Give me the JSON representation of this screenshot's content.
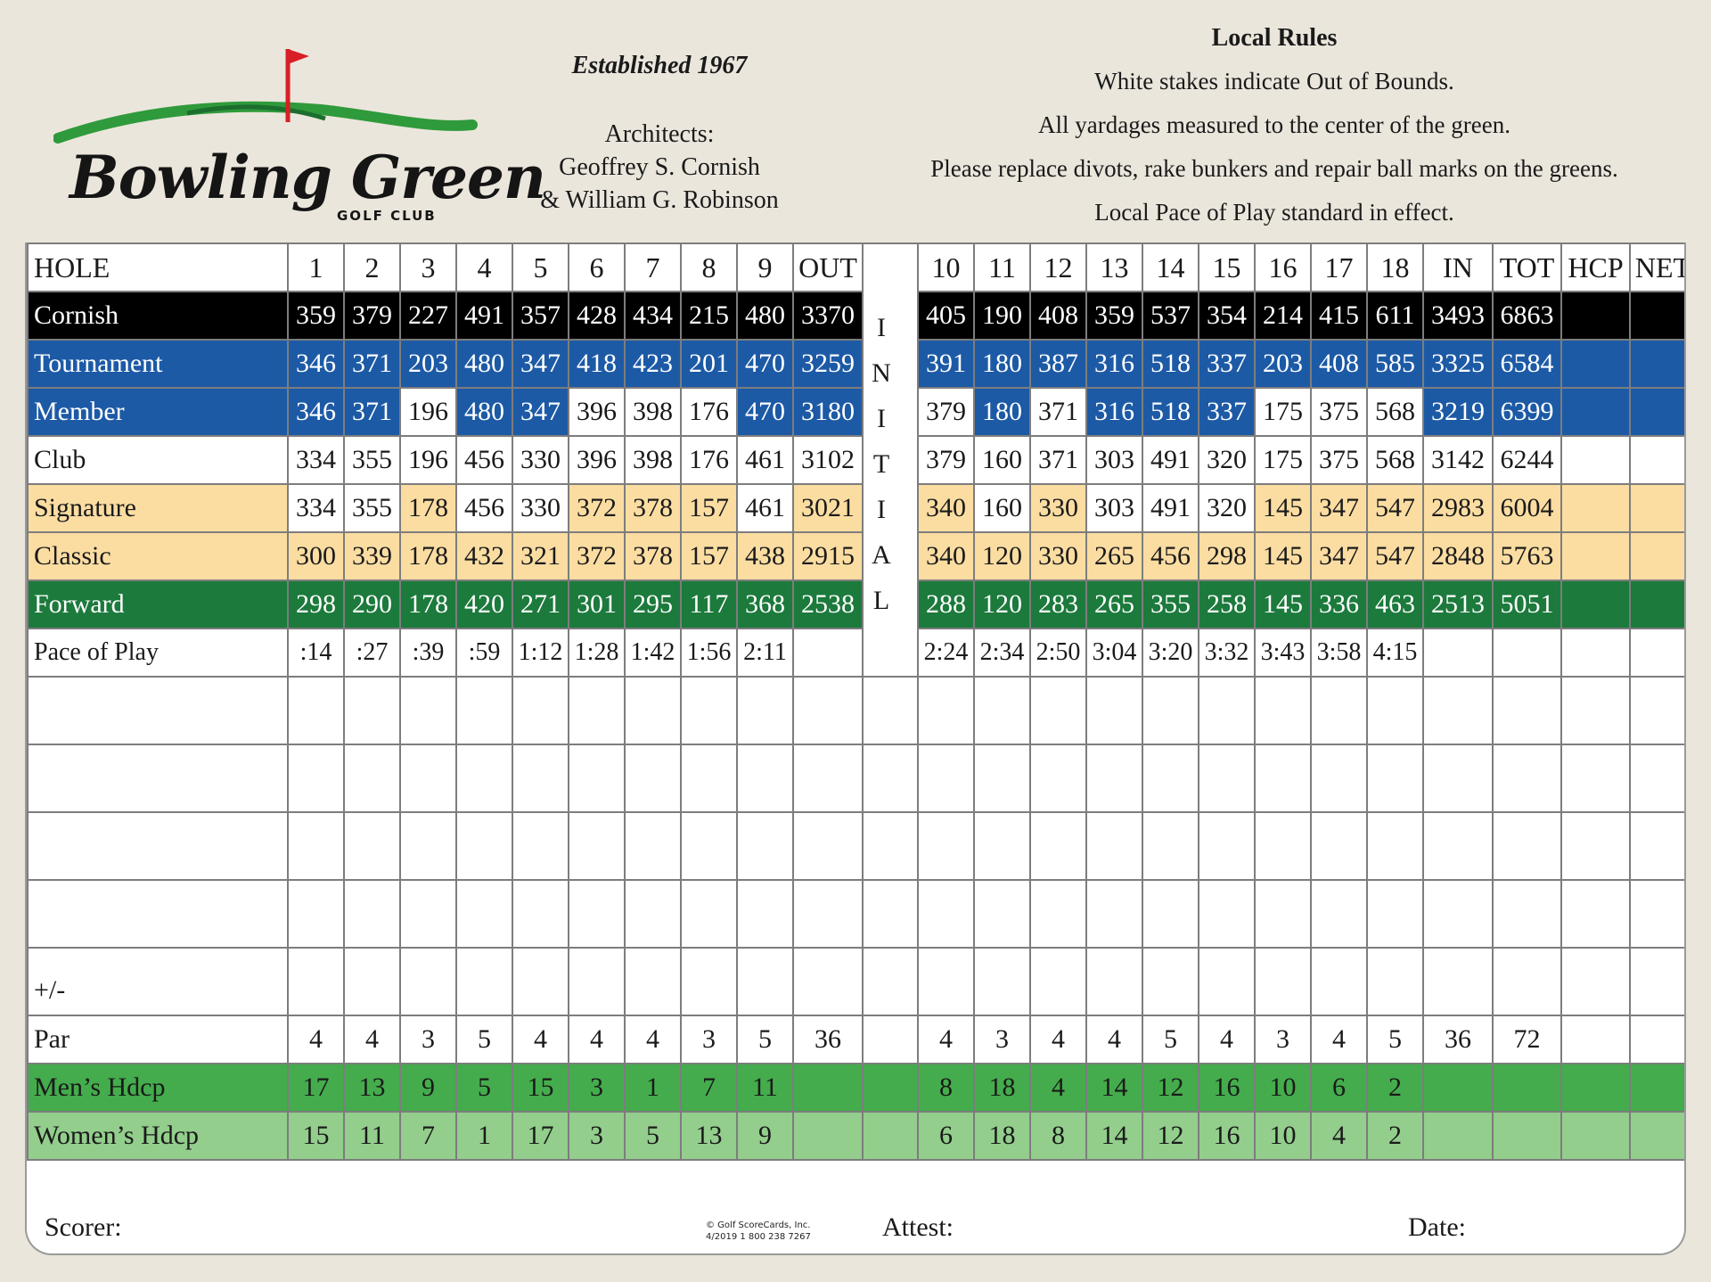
{
  "club": {
    "name": "Bowling Green",
    "subtitle": "GOLF CLUB",
    "established": "Established 1967",
    "architects_label": "Architects:",
    "architect_1": "Geoffrey S. Cornish",
    "architect_2": "& William G. Robinson"
  },
  "local_rules": {
    "title": "Local Rules",
    "lines": [
      "White stakes indicate Out of Bounds.",
      "All yardages measured to the center of the green.",
      "Please replace divots, rake bunkers and repair ball marks on the greens.",
      "Local Pace of Play standard in effect."
    ]
  },
  "colors": {
    "black_tee": "#000000",
    "blue_tee": "#1d5aa6",
    "gold_tee": "#fbdda2",
    "green_tee": "#1c7a3c",
    "mens_hdcp": "#44ac4c",
    "womens_hdcp": "#93ce8c",
    "flag": "#d81f26",
    "swoosh": "#2f9a3b"
  },
  "scorecard": {
    "hole_header": {
      "label": "HOLE",
      "front": [
        "1",
        "2",
        "3",
        "4",
        "5",
        "6",
        "7",
        "8",
        "9"
      ],
      "out": "OUT",
      "back": [
        "10",
        "11",
        "12",
        "13",
        "14",
        "15",
        "16",
        "17",
        "18"
      ],
      "in": "IN",
      "tot": "TOT",
      "hcp": "HCP",
      "net": "NET"
    },
    "initial_letters": [
      "I",
      "N",
      "I",
      "T",
      "I",
      "A",
      "L"
    ],
    "tees": [
      {
        "name": "Cornish",
        "front": [
          "359",
          "379",
          "227",
          "491",
          "357",
          "428",
          "434",
          "215",
          "480"
        ],
        "out": "3370",
        "back": [
          "405",
          "190",
          "408",
          "359",
          "537",
          "354",
          "214",
          "415",
          "611"
        ],
        "in": "3493",
        "tot": "6863"
      },
      {
        "name": "Tournament",
        "front": [
          "346",
          "371",
          "203",
          "480",
          "347",
          "418",
          "423",
          "201",
          "470"
        ],
        "out": "3259",
        "back": [
          "391",
          "180",
          "387",
          "316",
          "518",
          "337",
          "203",
          "408",
          "585"
        ],
        "in": "3325",
        "tot": "6584"
      },
      {
        "name": "Member",
        "front": [
          "346",
          "371",
          "196",
          "480",
          "347",
          "396",
          "398",
          "176",
          "470"
        ],
        "out": "3180",
        "back": [
          "379",
          "180",
          "371",
          "316",
          "518",
          "337",
          "175",
          "375",
          "568"
        ],
        "in": "3219",
        "tot": "6399"
      },
      {
        "name": "Club",
        "front": [
          "334",
          "355",
          "196",
          "456",
          "330",
          "396",
          "398",
          "176",
          "461"
        ],
        "out": "3102",
        "back": [
          "379",
          "160",
          "371",
          "303",
          "491",
          "320",
          "175",
          "375",
          "568"
        ],
        "in": "3142",
        "tot": "6244"
      },
      {
        "name": "Signature",
        "front": [
          "334",
          "355",
          "178",
          "456",
          "330",
          "372",
          "378",
          "157",
          "461"
        ],
        "out": "3021",
        "back": [
          "340",
          "160",
          "330",
          "303",
          "491",
          "320",
          "145",
          "347",
          "547"
        ],
        "in": "2983",
        "tot": "6004"
      },
      {
        "name": "Classic",
        "front": [
          "300",
          "339",
          "178",
          "432",
          "321",
          "372",
          "378",
          "157",
          "438"
        ],
        "out": "2915",
        "back": [
          "340",
          "120",
          "330",
          "265",
          "456",
          "298",
          "145",
          "347",
          "547"
        ],
        "in": "2848",
        "tot": "5763"
      },
      {
        "name": "Forward",
        "front": [
          "298",
          "290",
          "178",
          "420",
          "271",
          "301",
          "295",
          "117",
          "368"
        ],
        "out": "2538",
        "back": [
          "288",
          "120",
          "283",
          "265",
          "355",
          "258",
          "145",
          "336",
          "463"
        ],
        "in": "2513",
        "tot": "5051"
      }
    ],
    "pace": {
      "label": "Pace of Play",
      "front": [
        ":14",
        ":27",
        ":39",
        ":59",
        "1:12",
        "1:28",
        "1:42",
        "1:56",
        "2:11"
      ],
      "back": [
        "2:24",
        "2:34",
        "2:50",
        "3:04",
        "3:20",
        "3:32",
        "3:43",
        "3:58",
        "4:15"
      ]
    },
    "plus_minus_label": "+/-",
    "par": {
      "label": "Par",
      "front": [
        "4",
        "4",
        "3",
        "5",
        "4",
        "4",
        "4",
        "3",
        "5"
      ],
      "out": "36",
      "back": [
        "4",
        "3",
        "4",
        "4",
        "5",
        "4",
        "3",
        "4",
        "5"
      ],
      "in": "36",
      "tot": "72"
    },
    "mens_hdcp": {
      "label": "Men’s Hdcp",
      "front": [
        "17",
        "13",
        "9",
        "5",
        "15",
        "3",
        "1",
        "7",
        "11"
      ],
      "back": [
        "8",
        "18",
        "4",
        "14",
        "12",
        "16",
        "10",
        "6",
        "2"
      ]
    },
    "womens_hdcp": {
      "label": "Women’s Hdcp",
      "front": [
        "15",
        "11",
        "7",
        "1",
        "17",
        "3",
        "5",
        "13",
        "9"
      ],
      "back": [
        "6",
        "18",
        "8",
        "14",
        "12",
        "16",
        "10",
        "4",
        "2"
      ]
    }
  },
  "footer": {
    "scorer": "Scorer:",
    "attest": "Attest:",
    "date": "Date:",
    "copyright_1": "© Golf ScoreCards, Inc.",
    "copyright_2": "4/2019   1 800 238 7267"
  }
}
